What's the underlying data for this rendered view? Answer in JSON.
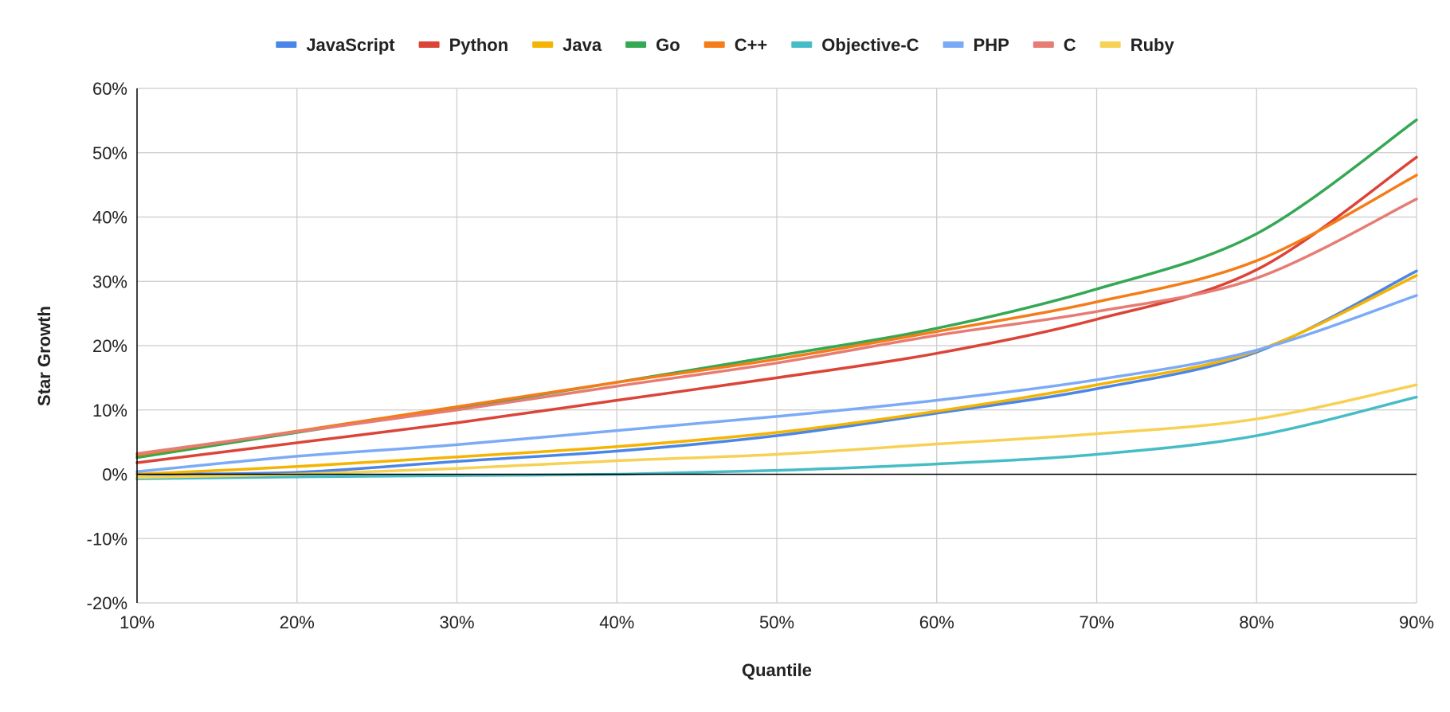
{
  "chart_data": {
    "type": "line",
    "title": "",
    "xlabel": "Quantile",
    "ylabel": "Star Growth",
    "legend_position": "top",
    "grid": true,
    "x": [
      10,
      20,
      30,
      40,
      50,
      60,
      70,
      80,
      90
    ],
    "xlim": [
      10,
      90
    ],
    "ylim": [
      -20,
      60
    ],
    "x_tick_labels": [
      "10%",
      "20%",
      "30%",
      "40%",
      "50%",
      "60%",
      "70%",
      "80%",
      "90%"
    ],
    "y_ticks": [
      60,
      50,
      40,
      30,
      20,
      10,
      0,
      -10,
      -20
    ],
    "y_tick_labels": [
      "60%",
      "50%",
      "40%",
      "30%",
      "20%",
      "10%",
      "0%",
      "-10%",
      "-20%"
    ],
    "series": [
      {
        "name": "JavaScript",
        "color": "#4a86e8",
        "values": [
          0.0,
          0.3,
          2.0,
          3.6,
          6.0,
          9.5,
          13.3,
          19.0,
          31.6
        ]
      },
      {
        "name": "Python",
        "color": "#db4437",
        "values": [
          1.8,
          4.9,
          8.0,
          11.5,
          15.0,
          18.8,
          24.1,
          31.8,
          49.3
        ]
      },
      {
        "name": "Java",
        "color": "#f4b400",
        "values": [
          0.0,
          1.2,
          2.7,
          4.3,
          6.5,
          9.8,
          13.9,
          19.2,
          30.9
        ]
      },
      {
        "name": "Go",
        "color": "#34a853",
        "values": [
          2.6,
          6.5,
          10.3,
          14.3,
          18.4,
          22.7,
          28.8,
          37.4,
          55.1
        ]
      },
      {
        "name": "C++",
        "color": "#f57c16",
        "values": [
          3.0,
          6.7,
          10.5,
          14.3,
          17.9,
          22.2,
          26.8,
          33.2,
          46.5
        ]
      },
      {
        "name": "Objective-C",
        "color": "#46bdc6",
        "values": [
          -0.7,
          -0.4,
          -0.2,
          0.0,
          0.6,
          1.6,
          3.1,
          6.0,
          12.0
        ]
      },
      {
        "name": "PHP",
        "color": "#7baaf7",
        "values": [
          0.4,
          2.8,
          4.6,
          6.8,
          9.0,
          11.5,
          14.7,
          19.3,
          27.8
        ]
      },
      {
        "name": "C",
        "color": "#e67c73",
        "values": [
          3.2,
          6.6,
          10.0,
          13.7,
          17.3,
          21.6,
          25.3,
          30.5,
          42.8
        ]
      },
      {
        "name": "Ruby",
        "color": "#f7d154",
        "values": [
          -0.5,
          0.0,
          0.9,
          2.1,
          3.1,
          4.7,
          6.3,
          8.6,
          13.9
        ]
      }
    ]
  }
}
